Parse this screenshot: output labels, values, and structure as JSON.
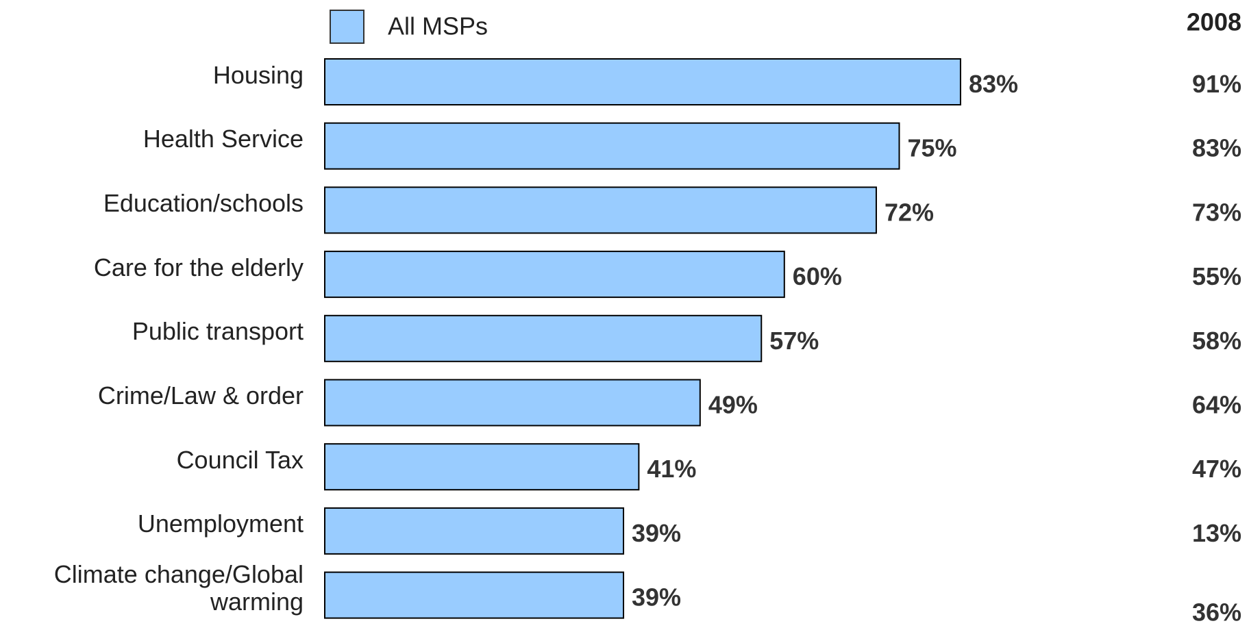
{
  "chart_data": {
    "type": "bar",
    "orientation": "horizontal",
    "categories": [
      "Housing",
      "Health Service",
      "Education/schools",
      "Care for the elderly",
      "Public transport",
      "Crime/Law & order",
      "Council Tax",
      "Unemployment",
      "Climate change/Global warming"
    ],
    "series": [
      {
        "name": "All MSPs",
        "color": "#99ccff",
        "values": [
          83,
          75,
          72,
          60,
          57,
          49,
          41,
          39,
          39
        ],
        "value_labels": [
          "83%",
          "75%",
          "72%",
          "60%",
          "57%",
          "49%",
          "41%",
          "39%",
          "39%"
        ]
      },
      {
        "name": "2008",
        "values": [
          91,
          83,
          73,
          55,
          58,
          64,
          47,
          13,
          36
        ],
        "value_labels": [
          "91%",
          "83%",
          "73%",
          "55%",
          "58%",
          "64%",
          "47%",
          "13%",
          "36%"
        ]
      }
    ],
    "xlim": [
      0,
      100
    ]
  }
}
